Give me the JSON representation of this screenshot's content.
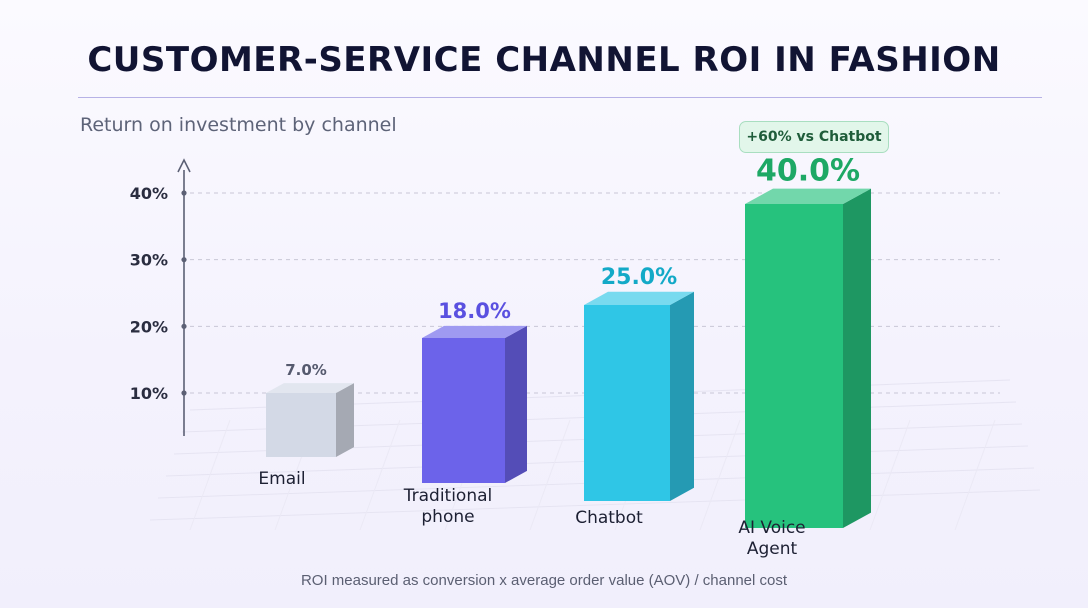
{
  "header": {
    "title": "CUSTOMER-SERVICE CHANNEL ROI IN FASHION",
    "subtitle": "Return on investment by channel"
  },
  "footer": {
    "note": "ROI measured as conversion x average order value (AOV) / channel cost"
  },
  "callout": {
    "text": "+60% vs Chatbot"
  },
  "colors": {
    "email": "#d3d9e6",
    "traditional_phone": "#6c63ea",
    "chatbot": "#2fc6e6",
    "ai_voice_agent": "#26c27d",
    "callout_bg": "#e2f6ea"
  },
  "chart_data": {
    "type": "bar",
    "title": "CUSTOMER-SERVICE CHANNEL ROI IN FASHION",
    "subtitle": "Return on investment by channel",
    "categories": [
      "Email",
      "Traditional phone",
      "Chatbot",
      "AI Voice Agent"
    ],
    "values": [
      7.0,
      18.0,
      25.0,
      40.0
    ],
    "value_labels": [
      "7.0%",
      "18.0%",
      "25.0%",
      "40.0%"
    ],
    "unit": "%",
    "yticks": [
      "10%",
      "20%",
      "30%",
      "40%"
    ],
    "ylim": [
      0,
      40
    ],
    "grid": true,
    "style": "3d-bars",
    "annotation": "+60% vs Chatbot"
  }
}
